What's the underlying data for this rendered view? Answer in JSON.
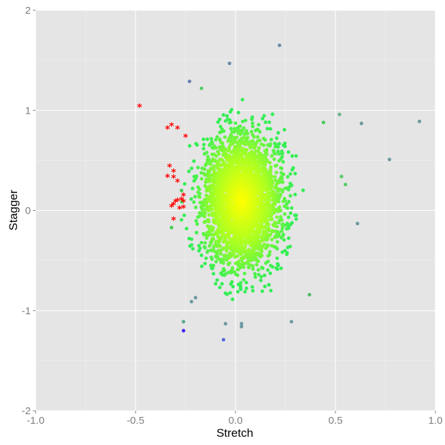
{
  "chart_data": {
    "type": "scatter",
    "title": "",
    "xlabel": "Stretch",
    "ylabel": "Stagger",
    "xlim": [
      -1.0,
      1.0
    ],
    "ylim": [
      -2,
      2
    ],
    "x_ticks": [
      -1.0,
      -0.5,
      0.0,
      0.5,
      1.0
    ],
    "x_tick_labels": [
      "-1.0",
      "-0.5",
      "0.0",
      "0.5",
      "1.0"
    ],
    "y_ticks": [
      -2,
      -1,
      0,
      1,
      2
    ],
    "y_tick_labels": [
      "-2",
      "-1",
      "0",
      "1",
      "2"
    ],
    "grid": true,
    "legend": "none",
    "background_color": "#e5e5e5",
    "grid_color": "#ffffff",
    "cluster": {
      "description_mode": "dense bivariate point cloud",
      "center": [
        0.03,
        0.1
      ],
      "sd": [
        0.1,
        0.33
      ],
      "n_points": 3000,
      "seed": 7,
      "color_scale": [
        "#ffff00",
        "#aaff22",
        "#33ee55"
      ]
    },
    "outliers": [
      {
        "x": 0.22,
        "y": 1.65,
        "color": "#6a8caa"
      },
      {
        "x": -0.03,
        "y": 1.47,
        "color": "#6a8caa"
      },
      {
        "x": -0.23,
        "y": 1.29,
        "color": "#6a7fb0"
      },
      {
        "x": -0.17,
        "y": 1.22,
        "color": "#55cc66"
      },
      {
        "x": 0.52,
        "y": 0.96,
        "color": "#66b488"
      },
      {
        "x": 0.63,
        "y": 0.87,
        "color": "#6a9aa0"
      },
      {
        "x": 0.92,
        "y": 0.89,
        "color": "#6a9aa0"
      },
      {
        "x": 0.77,
        "y": 0.51,
        "color": "#6a9aa0"
      },
      {
        "x": 0.61,
        "y": -0.13,
        "color": "#6a9aa0"
      },
      {
        "x": 0.53,
        "y": 0.34,
        "color": "#55cc66"
      },
      {
        "x": 0.55,
        "y": 0.26,
        "color": "#55cc66"
      },
      {
        "x": 0.44,
        "y": 0.88,
        "color": "#44cc55"
      },
      {
        "x": -0.22,
        "y": -0.91,
        "color": "#6a9aa0"
      },
      {
        "x": -0.2,
        "y": -0.87,
        "color": "#6a9aa0"
      },
      {
        "x": -0.05,
        "y": -1.13,
        "color": "#6a9aa0"
      },
      {
        "x": 0.03,
        "y": -1.13,
        "color": "#6a9aa0"
      },
      {
        "x": 0.03,
        "y": -1.16,
        "color": "#6a9aa0"
      },
      {
        "x": 0.28,
        "y": -1.11,
        "color": "#6a9aa0"
      },
      {
        "x": -0.26,
        "y": -1.2,
        "color": "#4422ee"
      },
      {
        "x": -0.06,
        "y": -1.29,
        "color": "#5566dd"
      },
      {
        "x": -0.26,
        "y": -1.11,
        "color": "#55aa88"
      },
      {
        "x": 0.37,
        "y": -0.84,
        "color": "#55bb66"
      },
      {
        "x": -0.32,
        "y": -0.17,
        "color": "#44cc55"
      },
      {
        "x": -0.27,
        "y": 0.2,
        "color": "#44cc55"
      }
    ],
    "highlighted": [
      {
        "x": -0.48,
        "y": 1.04
      },
      {
        "x": -0.32,
        "y": 0.85
      },
      {
        "x": -0.34,
        "y": 0.82
      },
      {
        "x": -0.29,
        "y": 0.82
      },
      {
        "x": -0.25,
        "y": 0.74
      },
      {
        "x": -0.33,
        "y": 0.44
      },
      {
        "x": -0.31,
        "y": 0.39
      },
      {
        "x": -0.34,
        "y": 0.34
      },
      {
        "x": -0.31,
        "y": 0.33
      },
      {
        "x": -0.29,
        "y": 0.29
      },
      {
        "x": -0.26,
        "y": 0.15
      },
      {
        "x": -0.27,
        "y": 0.11
      },
      {
        "x": -0.29,
        "y": 0.1
      },
      {
        "x": -0.26,
        "y": 0.09
      },
      {
        "x": -0.3,
        "y": 0.09
      },
      {
        "x": -0.31,
        "y": 0.06
      },
      {
        "x": -0.32,
        "y": 0.04
      },
      {
        "x": -0.26,
        "y": 0.03
      },
      {
        "x": -0.28,
        "y": 0.02
      },
      {
        "x": -0.31,
        "y": -0.09
      }
    ],
    "highlighted_color": "#ff0000",
    "highlighted_marker": "*"
  }
}
